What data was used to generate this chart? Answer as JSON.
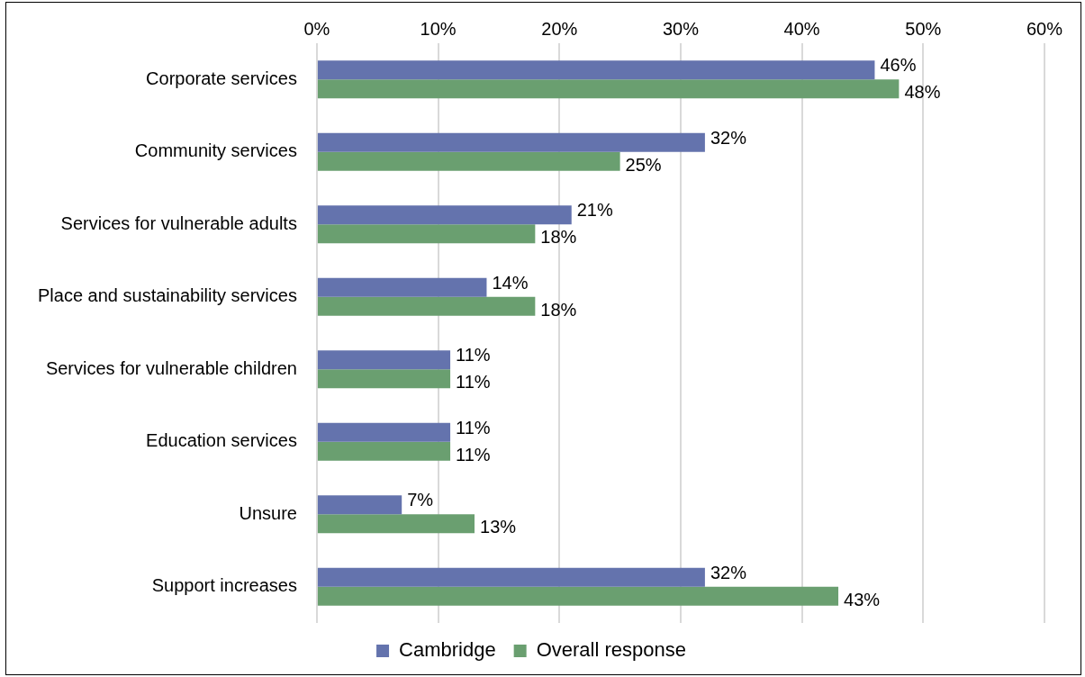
{
  "chart_data": {
    "type": "bar",
    "orientation": "horizontal",
    "categories": [
      "Corporate services",
      "Community services",
      "Services for vulnerable adults",
      "Place and sustainability services",
      "Services for vulnerable children",
      "Education services",
      "Unsure",
      "Support increases"
    ],
    "series": [
      {
        "name": "Cambridge",
        "color": "#6473ad",
        "values": [
          46,
          32,
          21,
          14,
          11,
          11,
          7,
          32
        ],
        "value_labels": [
          "46%",
          "32%",
          "21%",
          "14%",
          "11%",
          "11%",
          "7%",
          "32%"
        ]
      },
      {
        "name": "Overall response",
        "color": "#6a9f70",
        "values": [
          48,
          25,
          18,
          18,
          11,
          11,
          13,
          43
        ],
        "value_labels": [
          "48%",
          "25%",
          "18%",
          "18%",
          "11%",
          "11%",
          "13%",
          "43%"
        ]
      }
    ],
    "xlim": [
      0,
      60
    ],
    "xticks": [
      {
        "value": 0,
        "label": "0%"
      },
      {
        "value": 10,
        "label": "10%"
      },
      {
        "value": 20,
        "label": "20%"
      },
      {
        "value": 30,
        "label": "30%"
      },
      {
        "value": 40,
        "label": "40%"
      },
      {
        "value": 50,
        "label": "50%"
      },
      {
        "value": 60,
        "label": "60%"
      }
    ],
    "grid": "x",
    "legend": "bottom"
  }
}
